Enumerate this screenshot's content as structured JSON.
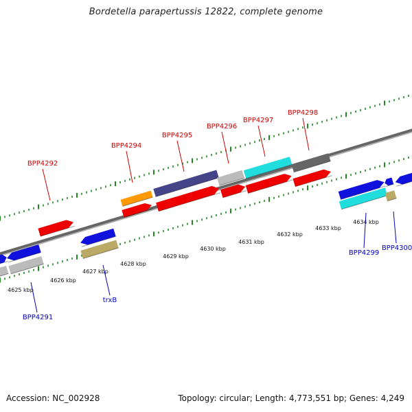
{
  "title": "Bordetella parapertussis 12822, complete genome",
  "footer": {
    "accession": "Accession: NC_002928",
    "summary": "Topology: circular; Length: 4,773,551 bp; Genes: 4,249"
  },
  "colors": {
    "red": "#ee0000",
    "blue": "#1111dd",
    "orange": "#ff9900",
    "navy": "#444488",
    "gray": "#bbbbbb",
    "cyan": "#22dddd",
    "darkgray": "#666666",
    "khaki": "#bbaa66",
    "tick": "#228822",
    "label_red": "#cc0000",
    "label_blue": "#0000bb"
  },
  "kbp_labels": [
    "4625 kbp",
    "4626 kbp",
    "4627 kbp",
    "4628 kbp",
    "4629 kbp",
    "4630 kbp",
    "4631 kbp",
    "4632 kbp",
    "4633 kbp",
    "4634 kbp"
  ],
  "gene_labels_top": [
    "BPP4292",
    "BPP4294",
    "BPP4295",
    "BPP4296",
    "BPP4297",
    "BPP4298"
  ],
  "gene_labels_bottom": [
    "BPP4291",
    "trxB",
    "BPP4299",
    "BPP4300"
  ]
}
